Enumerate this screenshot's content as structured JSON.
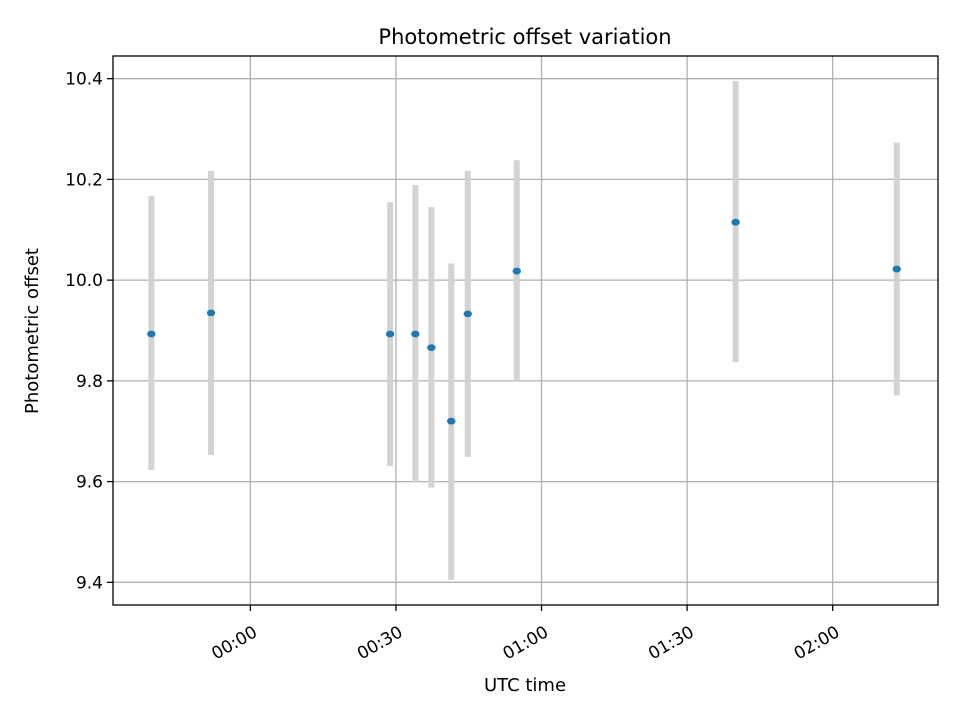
{
  "chart_data": {
    "type": "scatter",
    "title": "Photometric offset variation",
    "xlabel": "UTC time",
    "ylabel": "Photometric offset",
    "grid": true,
    "x_range_minutes": [
      -28.3,
      141.7
    ],
    "ylim": [
      9.355,
      10.445
    ],
    "x_ticks": [
      {
        "minutes": 0,
        "label": "00:00"
      },
      {
        "minutes": 30,
        "label": "00:30"
      },
      {
        "minutes": 60,
        "label": "01:00"
      },
      {
        "minutes": 90,
        "label": "01:30"
      },
      {
        "minutes": 120,
        "label": "02:00"
      }
    ],
    "y_ticks": [
      {
        "value": 9.4,
        "label": "9.4"
      },
      {
        "value": 9.6,
        "label": "9.6"
      },
      {
        "value": 9.8,
        "label": "9.8"
      },
      {
        "value": 10.0,
        "label": "10.0"
      },
      {
        "value": 10.2,
        "label": "10.2"
      },
      {
        "value": 10.4,
        "label": "10.4"
      }
    ],
    "colors": {
      "point": "#1f77b4",
      "errorbar": "#d3d3d3",
      "grid": "#b0b0b0"
    },
    "points": [
      {
        "time": "23:40",
        "minutes": -20.4,
        "y": 9.893,
        "y_low": 9.623,
        "y_high": 10.167
      },
      {
        "time": "23:53",
        "minutes": -8.1,
        "y": 9.935,
        "y_low": 9.653,
        "y_high": 10.217
      },
      {
        "time": "00:29",
        "minutes": 28.8,
        "y": 9.893,
        "y_low": 9.631,
        "y_high": 10.155
      },
      {
        "time": "00:34",
        "minutes": 34.0,
        "y": 9.893,
        "y_low": 9.598,
        "y_high": 10.189
      },
      {
        "time": "00:37",
        "minutes": 37.3,
        "y": 9.866,
        "y_low": 9.588,
        "y_high": 10.145
      },
      {
        "time": "00:41",
        "minutes": 41.4,
        "y": 9.72,
        "y_low": 9.405,
        "y_high": 10.033
      },
      {
        "time": "00:45",
        "minutes": 44.8,
        "y": 9.933,
        "y_low": 9.649,
        "y_high": 10.217
      },
      {
        "time": "00:55",
        "minutes": 54.9,
        "y": 10.018,
        "y_low": 9.8,
        "y_high": 10.238
      },
      {
        "time": "01:40",
        "minutes": 100.0,
        "y": 10.115,
        "y_low": 9.837,
        "y_high": 10.395
      },
      {
        "time": "02:13",
        "minutes": 133.2,
        "y": 10.022,
        "y_low": 9.771,
        "y_high": 10.273
      }
    ]
  }
}
